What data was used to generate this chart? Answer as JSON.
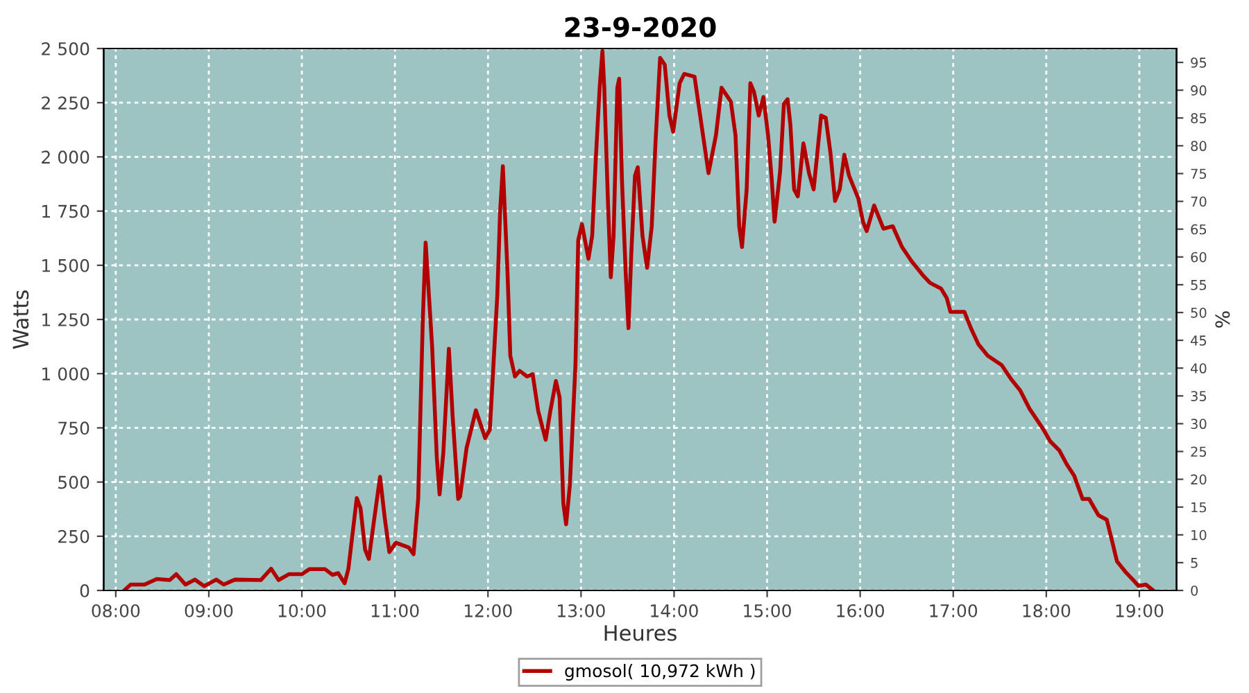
{
  "chart_data": {
    "type": "line",
    "title": "23-9-2020",
    "xlabel": "Heures",
    "ylabel": "Watts",
    "y2label": "%",
    "xlim": [
      7.87,
      19.4
    ],
    "xticks": [
      {
        "value": 8,
        "label": "08:00"
      },
      {
        "value": 9,
        "label": "09:00"
      },
      {
        "value": 10,
        "label": "10:00"
      },
      {
        "value": 11,
        "label": "11:00"
      },
      {
        "value": 12,
        "label": "12:00"
      },
      {
        "value": 13,
        "label": "13:00"
      },
      {
        "value": 14,
        "label": "14:00"
      },
      {
        "value": 15,
        "label": "15:00"
      },
      {
        "value": 16,
        "label": "16:00"
      },
      {
        "value": 17,
        "label": "17:00"
      },
      {
        "value": 18,
        "label": "18:00"
      },
      {
        "value": 19,
        "label": "19:00"
      }
    ],
    "ylim": [
      0,
      2500
    ],
    "yticks": [
      0,
      250,
      500,
      750,
      {
        "value": 1000,
        "label": "1 000"
      },
      {
        "value": 1250,
        "label": "1 250"
      },
      {
        "value": 1500,
        "label": "1 500"
      },
      {
        "value": 1750,
        "label": "1 750"
      },
      {
        "value": 2000,
        "label": "2 000"
      },
      {
        "value": 2250,
        "label": "2 250"
      },
      {
        "value": 2500,
        "label": "2 500"
      }
    ],
    "y2lim": [
      0,
      97.5
    ],
    "y2ticks": [
      0,
      5,
      10,
      15,
      20,
      25,
      30,
      35,
      40,
      45,
      50,
      55,
      60,
      65,
      70,
      75,
      80,
      85,
      90,
      95
    ],
    "grid": true,
    "legend": "bottom",
    "marker": "none",
    "line_style": "solid",
    "series": [
      {
        "name": "gmosol( 10,972 kWh )",
        "color": "#b30000",
        "x": [
          8.09,
          8.16,
          8.31,
          8.44,
          8.58,
          8.65,
          8.75,
          8.85,
          8.95,
          9.08,
          9.16,
          9.28,
          9.56,
          9.67,
          9.75,
          9.86,
          10.0,
          10.08,
          10.25,
          10.33,
          10.39,
          10.46,
          10.5,
          10.59,
          10.63,
          10.68,
          10.72,
          10.78,
          10.84,
          10.89,
          10.94,
          11.01,
          11.15,
          11.2,
          11.25,
          11.3,
          11.33,
          11.4,
          11.45,
          11.48,
          11.52,
          11.58,
          11.62,
          11.68,
          11.7,
          11.77,
          11.87,
          11.97,
          12.02,
          12.1,
          12.13,
          12.16,
          12.21,
          12.24,
          12.29,
          12.34,
          12.42,
          12.48,
          12.54,
          12.62,
          12.67,
          12.73,
          12.77,
          12.81,
          12.84,
          12.88,
          12.94,
          12.97,
          13.01,
          13.08,
          13.12,
          13.16,
          13.2,
          13.23,
          13.25,
          13.29,
          13.32,
          13.35,
          13.39,
          13.41,
          13.44,
          13.48,
          13.51,
          13.54,
          13.58,
          13.61,
          13.66,
          13.71,
          13.76,
          13.8,
          13.85,
          13.9,
          13.95,
          13.99,
          14.06,
          14.11,
          14.22,
          14.28,
          14.37,
          14.45,
          14.51,
          14.61,
          14.66,
          14.7,
          14.73,
          14.78,
          14.82,
          14.86,
          14.91,
          14.96,
          15.01,
          15.05,
          15.08,
          15.14,
          15.18,
          15.22,
          15.25,
          15.29,
          15.33,
          15.39,
          15.45,
          15.5,
          15.55,
          15.58,
          15.63,
          15.68,
          15.73,
          15.78,
          15.83,
          15.88,
          15.98,
          16.03,
          16.07,
          16.15,
          16.25,
          16.35,
          16.45,
          16.55,
          16.67,
          16.75,
          16.87,
          16.93,
          16.97,
          17.12,
          17.19,
          17.27,
          17.37,
          17.52,
          17.62,
          17.72,
          17.82,
          17.97,
          18.04,
          18.14,
          18.22,
          18.3,
          18.39,
          18.46,
          18.56,
          18.65,
          18.7,
          18.76,
          18.86,
          18.93,
          18.99,
          19.07,
          19.15
        ],
        "values": [
          0,
          27,
          27,
          53,
          48,
          75,
          27,
          50,
          20,
          50,
          27,
          50,
          48,
          100,
          48,
          75,
          75,
          98,
          98,
          72,
          80,
          33,
          100,
          426,
          380,
          187,
          145,
          337,
          524,
          337,
          177,
          220,
          198,
          167,
          422,
          1253,
          1605,
          1125,
          614,
          443,
          635,
          1115,
          806,
          422,
          433,
          657,
          831,
          703,
          741,
          1360,
          1744,
          1957,
          1466,
          1083,
          987,
          1013,
          987,
          998,
          827,
          695,
          827,
          966,
          890,
          401,
          305,
          486,
          1040,
          1616,
          1690,
          1530,
          1637,
          2000,
          2319,
          2489,
          2319,
          1786,
          1445,
          1637,
          2319,
          2361,
          1893,
          1466,
          1210,
          1552,
          1914,
          1952,
          1637,
          1488,
          1680,
          2063,
          2457,
          2425,
          2191,
          2116,
          2340,
          2383,
          2370,
          2191,
          1925,
          2100,
          2319,
          2255,
          2100,
          1680,
          1584,
          1850,
          2340,
          2298,
          2191,
          2276,
          2100,
          1893,
          1701,
          1936,
          2244,
          2266,
          2148,
          1850,
          1818,
          2063,
          1925,
          1850,
          2063,
          2191,
          2180,
          2020,
          1797,
          1850,
          2010,
          1914,
          1808,
          1701,
          1658,
          1776,
          1669,
          1680,
          1584,
          1520,
          1456,
          1419,
          1392,
          1349,
          1285,
          1285,
          1210,
          1136,
          1083,
          1040,
          976,
          922,
          838,
          742,
          689,
          646,
          582,
          529,
          422,
          422,
          347,
          326,
          240,
          134,
          81,
          50,
          21,
          27,
          0
        ]
      }
    ]
  }
}
